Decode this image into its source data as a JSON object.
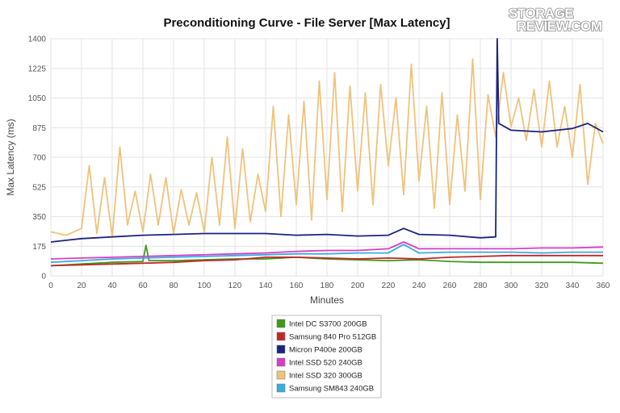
{
  "chart_data": {
    "type": "line",
    "title": "Preconditioning Curve - File Server [Max Latency]",
    "xlabel": "Minutes",
    "ylabel": "Max Latency (ms)",
    "xlim": [
      0,
      360
    ],
    "ylim": [
      0,
      1400
    ],
    "xticks": [
      "0",
      "20",
      "40",
      "60",
      "80",
      "100",
      "120",
      "140",
      "160",
      "180",
      "200",
      "220",
      "240",
      "260",
      "280",
      "300",
      "320",
      "340",
      "360"
    ],
    "yticks": [
      "0",
      "175",
      "350",
      "525",
      "700",
      "875",
      "1050",
      "1225",
      "1400"
    ],
    "grid": true,
    "legend_position": "bottom-center",
    "series": [
      {
        "name": "Intel DC S3700 200GB",
        "color": "#3f9a1c",
        "x": [
          0,
          20,
          40,
          60,
          62,
          64,
          80,
          100,
          120,
          140,
          160,
          180,
          200,
          220,
          240,
          260,
          280,
          300,
          320,
          340,
          360
        ],
        "y": [
          60,
          70,
          80,
          85,
          180,
          90,
          90,
          95,
          100,
          100,
          110,
          100,
          95,
          90,
          95,
          85,
          80,
          80,
          80,
          80,
          75
        ]
      },
      {
        "name": "Samsung 840 Pro 512GB",
        "color": "#c0282a",
        "x": [
          0,
          20,
          40,
          60,
          80,
          100,
          120,
          140,
          160,
          180,
          200,
          220,
          240,
          260,
          280,
          300,
          320,
          340,
          360
        ],
        "y": [
          60,
          65,
          70,
          75,
          80,
          90,
          95,
          110,
          110,
          105,
          100,
          105,
          100,
          110,
          115,
          120,
          120,
          120,
          120
        ]
      },
      {
        "name": "Micron P400e 200GB",
        "color": "#1a237e",
        "x": [
          0,
          10,
          20,
          40,
          60,
          80,
          100,
          120,
          140,
          160,
          180,
          200,
          220,
          230,
          240,
          260,
          280,
          290,
          291,
          292,
          300,
          320,
          340,
          350,
          360
        ],
        "y": [
          200,
          210,
          220,
          230,
          240,
          245,
          250,
          250,
          250,
          240,
          245,
          235,
          240,
          280,
          245,
          240,
          225,
          230,
          1400,
          900,
          860,
          850,
          870,
          900,
          850
        ]
      },
      {
        "name": "Intel SSD 520 240GB",
        "color": "#d63fc5",
        "x": [
          0,
          20,
          40,
          60,
          80,
          100,
          120,
          140,
          160,
          180,
          200,
          220,
          230,
          240,
          260,
          280,
          300,
          320,
          340,
          360
        ],
        "y": [
          100,
          105,
          110,
          115,
          120,
          125,
          130,
          135,
          145,
          150,
          150,
          160,
          200,
          160,
          160,
          160,
          160,
          165,
          165,
          170
        ]
      },
      {
        "name": "Intel SSD 320 300GB",
        "color": "#f0c27b",
        "x": [
          0,
          10,
          20,
          25,
          30,
          35,
          40,
          45,
          50,
          55,
          60,
          65,
          70,
          75,
          80,
          85,
          90,
          95,
          100,
          105,
          110,
          115,
          120,
          125,
          130,
          135,
          140,
          145,
          150,
          155,
          160,
          165,
          170,
          175,
          180,
          185,
          190,
          195,
          200,
          205,
          210,
          215,
          220,
          225,
          230,
          235,
          240,
          245,
          250,
          255,
          260,
          265,
          270,
          275,
          280,
          285,
          290,
          295,
          300,
          305,
          310,
          315,
          320,
          325,
          330,
          335,
          340,
          345,
          350,
          355,
          360
        ],
        "y": [
          260,
          240,
          280,
          650,
          250,
          580,
          230,
          760,
          300,
          500,
          260,
          600,
          300,
          580,
          250,
          510,
          300,
          490,
          260,
          700,
          300,
          820,
          280,
          750,
          320,
          600,
          380,
          1000,
          350,
          950,
          420,
          1030,
          330,
          1150,
          450,
          1200,
          380,
          1120,
          500,
          1080,
          420,
          1130,
          650,
          1050,
          480,
          1250,
          560,
          1000,
          400,
          1080,
          420,
          950,
          500,
          1280,
          450,
          1070,
          820,
          1200,
          880,
          1050,
          800,
          1100,
          760,
          1150,
          760,
          1000,
          700,
          1130,
          540,
          900,
          780
        ]
      },
      {
        "name": "Samsung SM843 240GB",
        "color": "#3aaae2",
        "x": [
          0,
          20,
          40,
          60,
          80,
          100,
          120,
          140,
          160,
          180,
          200,
          220,
          230,
          240,
          260,
          280,
          300,
          320,
          340,
          360
        ],
        "y": [
          80,
          90,
          100,
          105,
          110,
          115,
          120,
          125,
          130,
          130,
          135,
          135,
          185,
          135,
          140,
          140,
          140,
          135,
          140,
          140
        ]
      }
    ]
  },
  "watermark": {
    "line1": "STORAGE",
    "line2": "REVIEW.COM"
  }
}
